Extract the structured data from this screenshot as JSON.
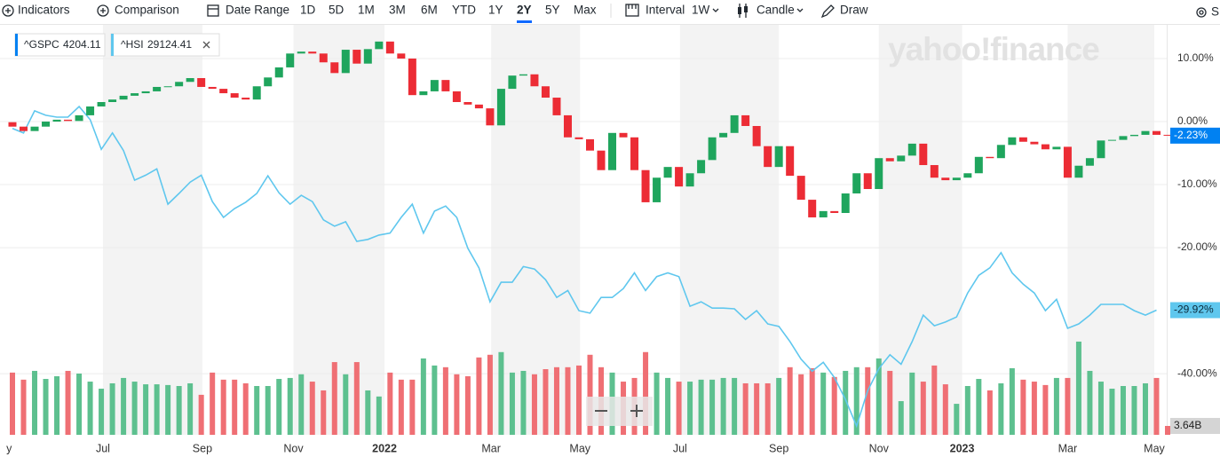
{
  "toolbar": {
    "indicators": "Indicators",
    "comparison": "Comparison",
    "date_range": "Date Range",
    "ranges": [
      "1D",
      "5D",
      "1M",
      "3M",
      "6M",
      "YTD",
      "1Y",
      "2Y",
      "5Y",
      "Max"
    ],
    "interval_label": "Interval",
    "interval": "1W",
    "chart_type": "Candle",
    "draw": "Draw",
    "settings": "S"
  },
  "legend": [
    {
      "symbol": "^GSPC",
      "price": 4204.11
    },
    {
      "symbol": "^HSI",
      "price": 29124.41
    }
  ],
  "watermark": "yahoo!finance",
  "chart_data": {
    "type": "candlestick",
    "series": [
      {
        "name": "^GSPC",
        "color": "#0081f2",
        "up_color": "#1fa55d",
        "down_color": "#ec2c35",
        "last_label": "-2.23%",
        "open": [
          -0.1,
          -0.8,
          -1.5,
          -0.8,
          0,
          0.3,
          0.1,
          1,
          2.4,
          3.1,
          3.5,
          4.1,
          4.5,
          4.8,
          5.5,
          5.6,
          6.3,
          6.9,
          5.5,
          5.2,
          4.5,
          3.8,
          3.5,
          5.6,
          7,
          8.6,
          10.8,
          11.1,
          10.8,
          9.4,
          7.7,
          11.4,
          9.2,
          11.5,
          12.7,
          10.8,
          10,
          4.2,
          4.8,
          6.6,
          4.8,
          3.1,
          2.7,
          2.1,
          -0.6,
          5.2,
          7.3,
          7.5,
          5.6,
          3.8,
          1,
          -2.5,
          -2.8,
          -4.6,
          -7.7,
          -1.8,
          -2.5,
          -7.7,
          -12.8,
          -8.9,
          -7.2,
          -10.3,
          -8.2,
          -6.1,
          -2.5,
          -1.8,
          1,
          -0.7,
          -3.9,
          -7.2,
          -3.9,
          -8.6,
          -12.4,
          -15.2,
          -14.2,
          -14.5,
          -11.4,
          -8.2,
          -10.7,
          -5.8,
          -6.3,
          -5.4,
          -3.5,
          -6.9,
          -8.9,
          -9.3,
          -8.9,
          -8.2,
          -5.6,
          -5.8,
          -3.7,
          -2.5,
          -3.2,
          -3.6,
          -4.4,
          -4,
          -8.9,
          -7,
          -5.8,
          -3,
          -2.9,
          -2.3,
          -2.1,
          -1.5,
          -2.1
        ],
        "close": [
          -0.8,
          -1.5,
          -0.8,
          0,
          0.3,
          0.1,
          1,
          2.4,
          3.1,
          3.5,
          4.1,
          4.5,
          4.8,
          5.5,
          5.6,
          6.3,
          6.9,
          5.5,
          5.2,
          4.5,
          3.8,
          3.5,
          5.6,
          7,
          8.6,
          10.8,
          11.1,
          10.8,
          9.4,
          7.7,
          11.4,
          9.2,
          11.5,
          12.7,
          10.8,
          10,
          4.2,
          4.8,
          6.6,
          4.8,
          3.1,
          2.7,
          2.1,
          -0.6,
          5.2,
          7.3,
          7.5,
          5.6,
          3.8,
          1,
          -2.5,
          -2.8,
          -4.6,
          -7.7,
          -1.8,
          -2.5,
          -7.7,
          -12.8,
          -8.9,
          -7.2,
          -10.3,
          -8.2,
          -6.1,
          -2.5,
          -1.8,
          1,
          -0.7,
          -3.9,
          -7.2,
          -3.9,
          -8.6,
          -12.4,
          -15.2,
          -14.2,
          -14.5,
          -11.4,
          -8.2,
          -10.7,
          -5.8,
          -6.3,
          -5.4,
          -3.5,
          -6.9,
          -8.9,
          -9.3,
          -8.9,
          -8.2,
          -5.6,
          -5.8,
          -3.7,
          -2.5,
          -3.2,
          -3.6,
          -4.4,
          -4,
          -8.9,
          -7,
          -5.8,
          -3,
          -2.9,
          -2.3,
          -2.1,
          -1.5,
          -2.1,
          -2.23
        ]
      }
    ],
    "line": {
      "name": "^HSI",
      "color": "#5fc7ee",
      "last_label": "-29.92%",
      "values": [
        -1.1,
        -1.8,
        1.7,
        1,
        0.7,
        0.7,
        2.4,
        0.3,
        -4.4,
        -1.8,
        -4.6,
        -9.3,
        -8.5,
        -7.5,
        -13.1,
        -11.4,
        -9.6,
        -8.5,
        -12.7,
        -15.2,
        -13.8,
        -12.8,
        -11.4,
        -8.6,
        -11.3,
        -13.1,
        -11.7,
        -12.7,
        -15.6,
        -16.6,
        -15.9,
        -19,
        -18.7,
        -18,
        -17.7,
        -15.2,
        -13.1,
        -17.7,
        -14.2,
        -13.4,
        -15.2,
        -20.1,
        -23.2,
        -28.6,
        -25.5,
        -25.5,
        -23,
        -23.4,
        -25.1,
        -27.9,
        -26.8,
        -30,
        -30.4,
        -27.9,
        -27.9,
        -26.5,
        -24,
        -26.8,
        -24.6,
        -24,
        -24.6,
        -29.3,
        -28.6,
        -29.6,
        -29.6,
        -29.7,
        -31.4,
        -30,
        -32.1,
        -32.5,
        -34.9,
        -37.7,
        -39.6,
        -38.2,
        -40.6,
        -44.1,
        -48.3,
        -42.7,
        -39.2,
        -37,
        -38.5,
        -34.9,
        -30.7,
        -32.4,
        -31.8,
        -31,
        -27.2,
        -24.4,
        -23.2,
        -20.8,
        -24,
        -25.8,
        -27.2,
        -30,
        -28.2,
        -32.8,
        -32.1,
        -30.7,
        -29,
        -29,
        -29,
        -30,
        -30.7,
        -29.92,
        null
      ]
    },
    "volume": {
      "up_color": "#5dc08f",
      "down_color": "#ef6f74",
      "last_label": "3.64B",
      "ylim": [
        0,
        168
      ],
      "values": [
        25.5,
        22.6,
        26.2,
        22.9,
        24,
        26.2,
        25.1,
        21.8,
        18.9,
        21.1,
        23.3,
        21.8,
        20.7,
        20.7,
        20.4,
        20,
        21.1,
        16.4,
        25.5,
        22.6,
        22.6,
        21.1,
        20,
        20,
        22.9,
        23.3,
        24.8,
        21.8,
        18.2,
        29.8,
        24.8,
        29.8,
        18.2,
        15.7,
        25.5,
        22.6,
        22.6,
        31.3,
        28.4,
        27.7,
        24.8,
        24,
        31.7,
        32.8,
        33.9,
        25.5,
        26.2,
        24.8,
        26.9,
        27.7,
        27.7,
        28.4,
        32.8,
        27.7,
        25.5,
        21.8,
        23.3,
        33.9,
        25.5,
        23.3,
        21.8,
        21.8,
        22.6,
        22.6,
        23.3,
        23.3,
        21.1,
        21.1,
        21.1,
        23.3,
        27.7,
        24.8,
        27.3,
        25.5,
        23.7,
        26.2,
        27.7,
        27.7,
        31.3,
        26.2,
        13.8,
        25.5,
        21.8,
        28.4,
        20.7,
        12.7,
        20,
        22.9,
        18.2,
        21.1,
        27.3,
        22.6,
        21.8,
        20.4,
        23.3,
        23.3,
        38.2,
        26.2,
        21.8,
        18.9,
        20,
        20,
        21.1,
        23.3,
        3.64
      ]
    },
    "ylim": [
      -49.7,
      15.35
    ],
    "yticks": [
      {
        "value": 10,
        "label": "10.00%"
      },
      {
        "value": 0,
        "label": "0.00%"
      },
      {
        "value": -10,
        "label": "-10.00%"
      },
      {
        "value": -20,
        "label": "-20.00%"
      },
      {
        "value": -40,
        "label": "-40.00%"
      }
    ],
    "xticks": [
      {
        "value": -0.3,
        "label": "y"
      },
      {
        "value": 8.15,
        "label": "Jul"
      },
      {
        "value": 17.1,
        "label": "Sep"
      },
      {
        "value": 25.3,
        "label": "Nov"
      },
      {
        "value": 33.5,
        "label": "2022"
      },
      {
        "value": 43.1,
        "label": "Mar"
      },
      {
        "value": 51.1,
        "label": "May"
      },
      {
        "value": 60.1,
        "label": "Jul"
      },
      {
        "value": 69,
        "label": "Sep"
      },
      {
        "value": 78,
        "label": "Nov"
      },
      {
        "value": 85.5,
        "label": "2023"
      },
      {
        "value": 95,
        "label": "Mar"
      },
      {
        "value": 102.8,
        "label": "May"
      }
    ],
    "grid": true
  }
}
